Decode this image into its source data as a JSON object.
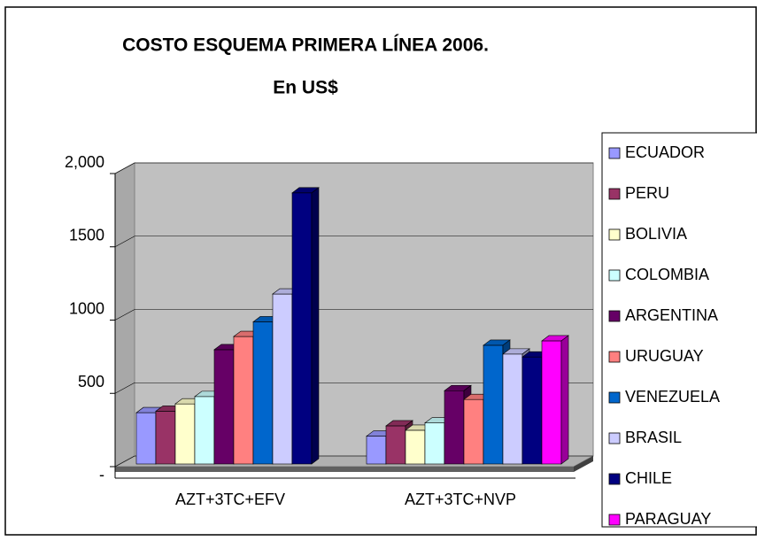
{
  "chart_data": {
    "type": "bar3d",
    "title": "COSTO ESQUEMA PRIMERA LÍNEA 2006.",
    "subtitle": "En US$",
    "categories": [
      "AZT+3TC+EFV",
      "AZT+3TC+NVP"
    ],
    "series": [
      {
        "name": "ECUADOR",
        "color": "#9999ff",
        "values": [
          350,
          190
        ]
      },
      {
        "name": "PERU",
        "color": "#993366",
        "values": [
          360,
          260
        ]
      },
      {
        "name": "BOLIVIA",
        "color": "#ffffcc",
        "values": [
          410,
          230
        ]
      },
      {
        "name": "COLOMBIA",
        "color": "#ccffff",
        "values": [
          460,
          280
        ]
      },
      {
        "name": "ARGENTINA",
        "color": "#660066",
        "values": [
          780,
          500
        ]
      },
      {
        "name": "URUGUAY",
        "color": "#ff8080",
        "values": [
          870,
          440
        ]
      },
      {
        "name": "VENEZUELA",
        "color": "#0066cc",
        "values": [
          970,
          810
        ]
      },
      {
        "name": "BRASIL",
        "color": "#ccccff",
        "values": [
          1160,
          750
        ]
      },
      {
        "name": "CHILE",
        "color": "#000080",
        "values": [
          1850,
          730
        ]
      },
      {
        "name": "PARAGUAY",
        "color": "#ff00ff",
        "values": [
          null,
          840
        ]
      }
    ],
    "ylim": [
      0,
      2000
    ],
    "yticks": [
      {
        "value": 0,
        "label": "-"
      },
      500,
      1000,
      1500,
      {
        "value": 2000,
        "label": "2,000"
      }
    ],
    "grid": true,
    "legend": "right"
  }
}
